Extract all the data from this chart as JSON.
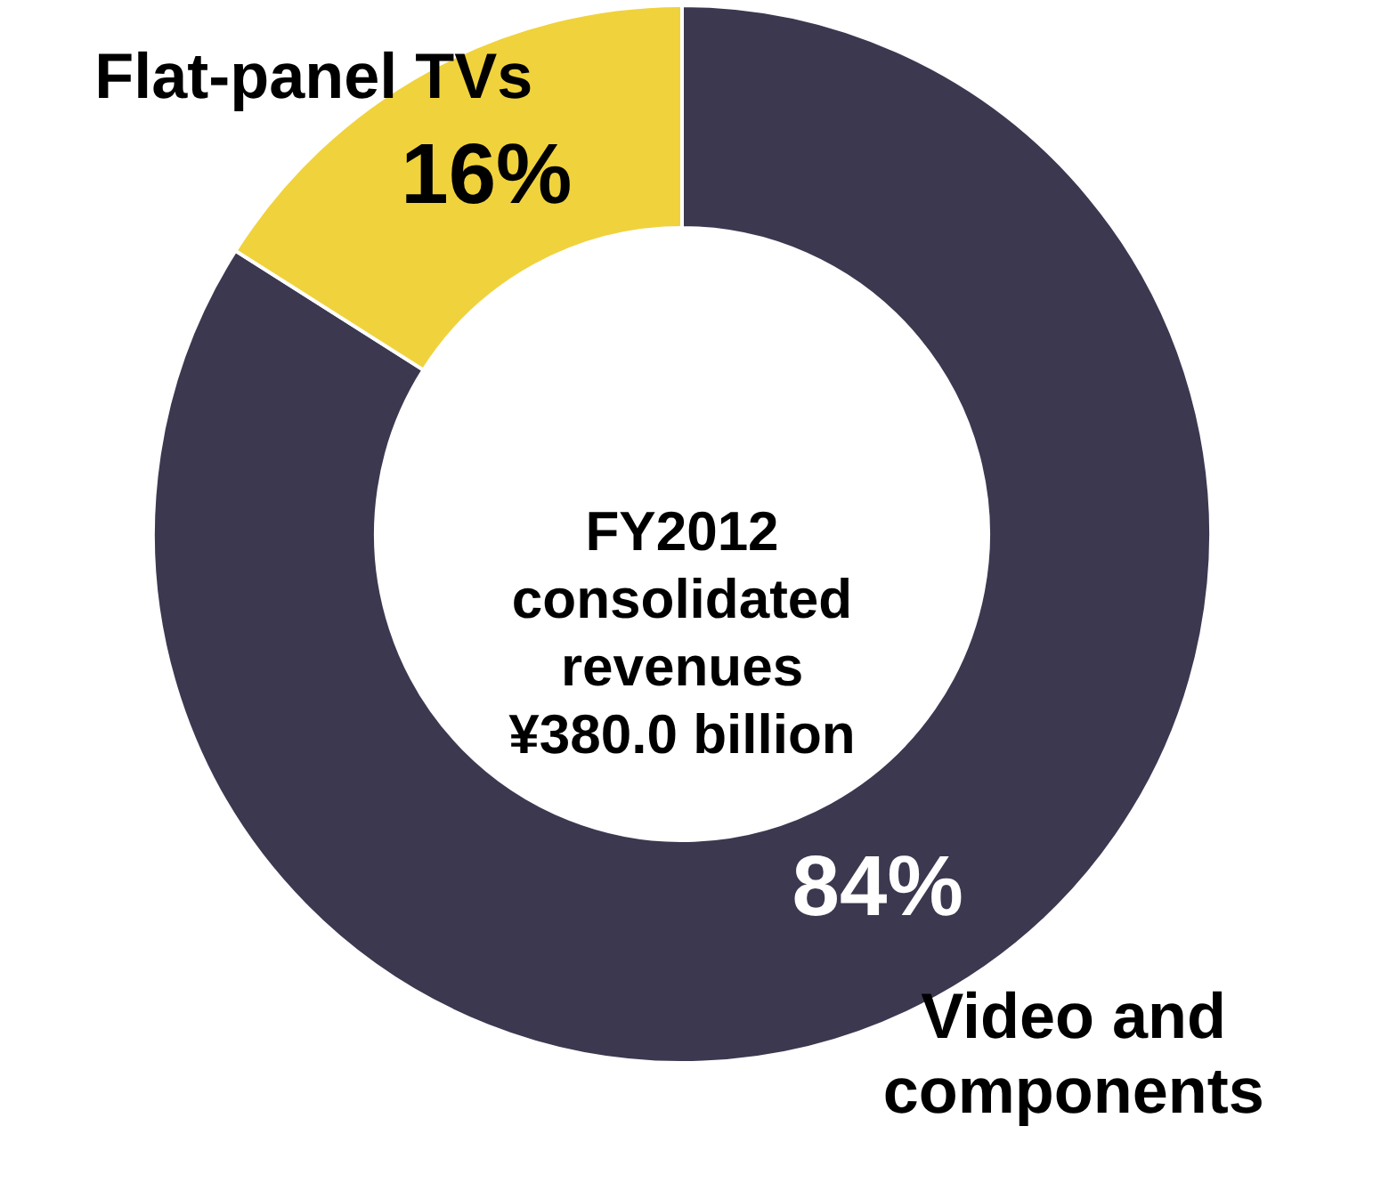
{
  "chart_data": {
    "type": "donut",
    "categories": [
      "Video and components",
      "Flat-panel TVs"
    ],
    "values": [
      84,
      16
    ],
    "colors": [
      "#3b3850",
      "#f0d23c"
    ],
    "value_labels": [
      "84%",
      "16%"
    ],
    "annotations": [
      "FY2012 consolidated revenues ¥380.0 billion"
    ]
  }
}
